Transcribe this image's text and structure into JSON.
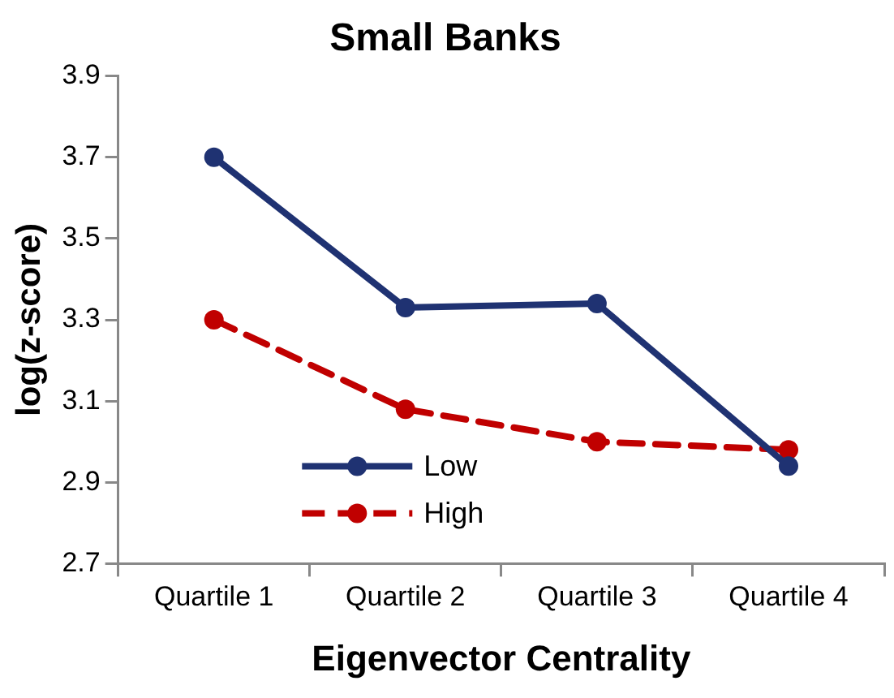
{
  "chart_data": {
    "type": "line",
    "title": "Small Banks",
    "xlabel": "Eigenvector Centrality",
    "ylabel": "log(z-score)",
    "categories": [
      "Quartile 1",
      "Quartile 2",
      "Quartile 3",
      "Quartile 4"
    ],
    "series": [
      {
        "name": "Low",
        "color": "#1f3272",
        "values": [
          3.7,
          3.33,
          3.34,
          2.94
        ],
        "line_style": "solid"
      },
      {
        "name": "High",
        "color": "#c00000",
        "values": [
          3.3,
          3.08,
          3.0,
          2.98
        ],
        "line_style": "dashed"
      }
    ],
    "ylim": [
      2.7,
      3.9
    ],
    "yticks": [
      2.7,
      2.9,
      3.1,
      3.3,
      3.5,
      3.7,
      3.9
    ],
    "grid": false,
    "legend": "bottom",
    "marker": "circle"
  }
}
